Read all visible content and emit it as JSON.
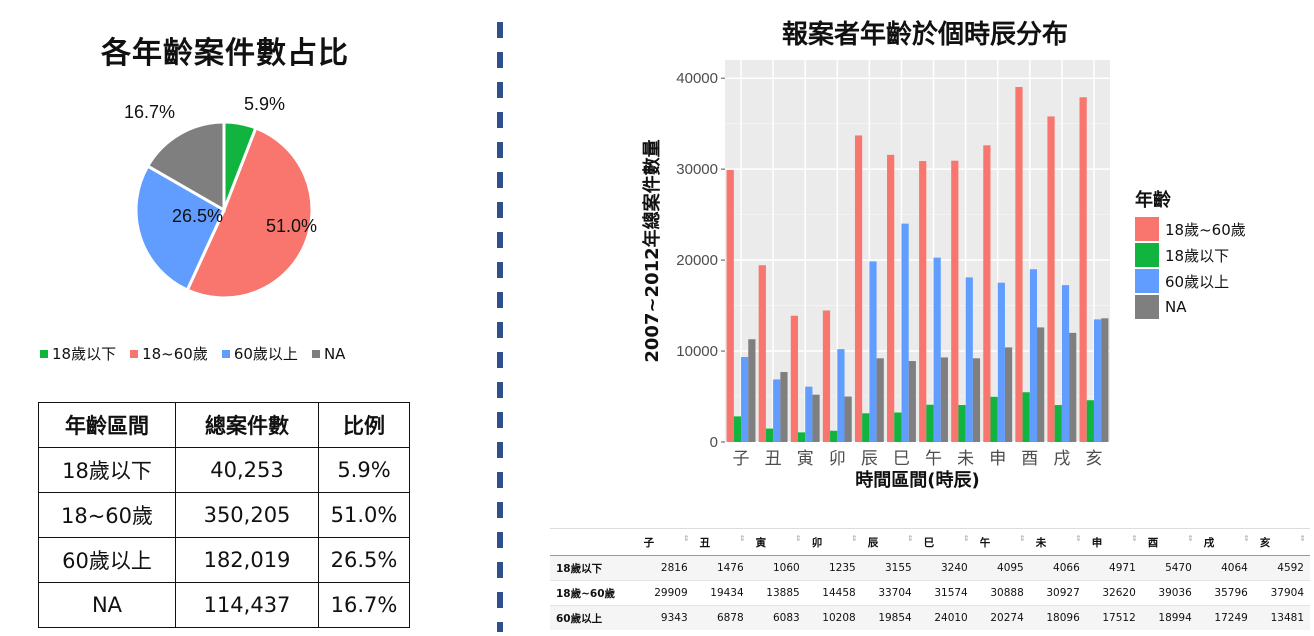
{
  "pie": {
    "title": "各年齡案件數占比",
    "legend": [
      {
        "label": "18歲以下",
        "color": "#11b43e"
      },
      {
        "label": "18~60歲",
        "color": "#f8766d"
      },
      {
        "label": "60歲以上",
        "color": "#619cff"
      },
      {
        "label": "NA",
        "color": "#7f7f7f"
      }
    ]
  },
  "summary_table": {
    "headers": [
      "年齡區間",
      "總案件數",
      "比例"
    ],
    "rows": [
      [
        "18歲以下",
        "40,253",
        "5.9%"
      ],
      [
        "18~60歲",
        "350,205",
        "51.0%"
      ],
      [
        "60歲以上",
        "182,019",
        "26.5%"
      ],
      [
        "NA",
        "114,437",
        "16.7%"
      ]
    ]
  },
  "bar": {
    "title": "報案者年齡於個時辰分布",
    "ylabel": "2007~2012年總案件數量",
    "xlabel": "時間區間(時辰)",
    "legend_title": "年齡",
    "legend": [
      {
        "label": "18歲~60歲",
        "color": "#f8766d"
      },
      {
        "label": "18歲以下",
        "color": "#11b43e"
      },
      {
        "label": "60歲以上",
        "color": "#619cff"
      },
      {
        "label": "NA",
        "color": "#7f7f7f"
      }
    ]
  },
  "data_table": {
    "headers": [
      "",
      "子",
      "丑",
      "寅",
      "卯",
      "辰",
      "巳",
      "午",
      "未",
      "申",
      "酉",
      "戌",
      "亥"
    ],
    "rows": [
      [
        "18歲以下",
        "2816",
        "1476",
        "1060",
        "1235",
        "3155",
        "3240",
        "4095",
        "4066",
        "4971",
        "5470",
        "4064",
        "4592"
      ],
      [
        "18歲~60歲",
        "29909",
        "19434",
        "13885",
        "14458",
        "33704",
        "31574",
        "30888",
        "30927",
        "32620",
        "39036",
        "35796",
        "37904"
      ],
      [
        "60歲以上",
        "9343",
        "6878",
        "6083",
        "10208",
        "19854",
        "24010",
        "20274",
        "18096",
        "17512",
        "18994",
        "17249",
        "13481"
      ]
    ]
  },
  "chart_data": [
    {
      "type": "pie",
      "title": "各年齡案件數占比",
      "slices": [
        {
          "label": "18歲以下",
          "value": 5.9,
          "display": "5.9%",
          "color": "#11b43e"
        },
        {
          "label": "18~60歲",
          "value": 51.0,
          "display": "51.0%",
          "color": "#f8766d"
        },
        {
          "label": "60歲以上",
          "value": 26.5,
          "display": "26.5%",
          "color": "#619cff"
        },
        {
          "label": "NA",
          "value": 16.7,
          "display": "16.7%",
          "color": "#7f7f7f"
        }
      ]
    },
    {
      "type": "bar",
      "title": "報案者年齡於個時辰分布",
      "xlabel": "時間區間(時辰)",
      "ylabel": "2007~2012年總案件數量",
      "ylim": [
        0,
        42000
      ],
      "yticks": [
        0,
        10000,
        20000,
        30000,
        40000
      ],
      "ytick_labels": [
        "0",
        "10000",
        "20000",
        "30000",
        "40000"
      ],
      "categories": [
        "子",
        "丑",
        "寅",
        "卯",
        "辰",
        "巳",
        "午",
        "未",
        "申",
        "酉",
        "戌",
        "亥"
      ],
      "series": [
        {
          "name": "18歲~60歲",
          "color": "#f8766d",
          "values": [
            29909,
            19434,
            13885,
            14458,
            33704,
            31574,
            30888,
            30927,
            32620,
            39036,
            35796,
            37904
          ]
        },
        {
          "name": "18歲以下",
          "color": "#11b43e",
          "values": [
            2816,
            1476,
            1060,
            1235,
            3155,
            3240,
            4095,
            4066,
            4971,
            5470,
            4064,
            4592
          ]
        },
        {
          "name": "60歲以上",
          "color": "#619cff",
          "values": [
            9343,
            6878,
            6083,
            10208,
            19854,
            24010,
            20274,
            18096,
            17512,
            18994,
            17249,
            13481
          ]
        },
        {
          "name": "NA",
          "color": "#7f7f7f",
          "values": [
            11300,
            7700,
            5200,
            5000,
            9200,
            8900,
            9300,
            9200,
            10400,
            12600,
            12000,
            13600
          ]
        }
      ],
      "grid": true,
      "legend_position": "right"
    }
  ]
}
